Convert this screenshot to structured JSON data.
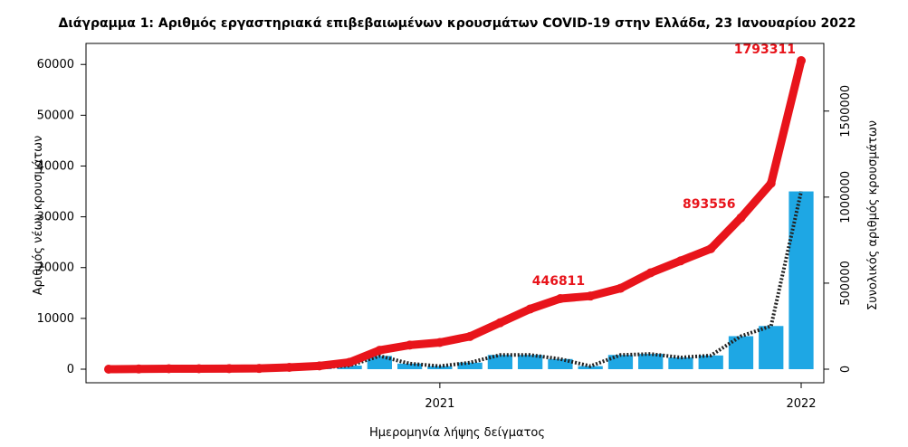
{
  "chart_data": {
    "type": "bar+line",
    "title": "Διάγραμμα 1: Αριθμός εργαστηριακά επιβεβαιωμένων κρουσμάτων COVID-19 στην Ελλάδα, 23 Ιανουαρίου 2022",
    "xlabel": "Ημερομηνία λήψης δείγματος",
    "ylabel_left": "Αριθμός νέων κρουσμάτων",
    "ylabel_right": "Συνολικός αριθμός κρουσμάτων",
    "x_ticks": [
      "2021",
      "2022"
    ],
    "ylim_left": [
      0,
      62000
    ],
    "yticks_left": [
      "0",
      "10000",
      "20000",
      "30000",
      "40000",
      "50000",
      "60000"
    ],
    "ylim_right": [
      0,
      1830000
    ],
    "yticks_right": [
      "0",
      "500000",
      "1000000",
      "1500000"
    ],
    "grid": false,
    "colors": {
      "bars": "#1ea7e4",
      "cumulative": "#e8141b",
      "moving_average": "#222222"
    },
    "daily_new_cases": [
      {
        "month": "2020-02",
        "value": 0
      },
      {
        "month": "2020-03",
        "value": 60
      },
      {
        "month": "2020-04",
        "value": 40
      },
      {
        "month": "2020-05",
        "value": 10
      },
      {
        "month": "2020-06",
        "value": 10
      },
      {
        "month": "2020-07",
        "value": 30
      },
      {
        "month": "2020-08",
        "value": 200
      },
      {
        "month": "2020-09",
        "value": 300
      },
      {
        "month": "2020-10",
        "value": 700
      },
      {
        "month": "2020-11",
        "value": 2600
      },
      {
        "month": "2020-12",
        "value": 1100
      },
      {
        "month": "2021-01",
        "value": 600
      },
      {
        "month": "2021-02",
        "value": 1300
      },
      {
        "month": "2021-03",
        "value": 2800
      },
      {
        "month": "2021-04",
        "value": 2800
      },
      {
        "month": "2021-05",
        "value": 2000
      },
      {
        "month": "2021-06",
        "value": 600
      },
      {
        "month": "2021-07",
        "value": 2800
      },
      {
        "month": "2021-08",
        "value": 3000
      },
      {
        "month": "2021-09",
        "value": 2300
      },
      {
        "month": "2021-10",
        "value": 2700
      },
      {
        "month": "2021-11",
        "value": 6500
      },
      {
        "month": "2021-12",
        "value": 8500
      },
      {
        "month": "2022-01",
        "value": 35000
      }
    ],
    "cumulative_cases": [
      {
        "month": "2020-02",
        "value": 0
      },
      {
        "month": "2020-03",
        "value": 1300
      },
      {
        "month": "2020-04",
        "value": 2600
      },
      {
        "month": "2020-05",
        "value": 2900
      },
      {
        "month": "2020-06",
        "value": 3400
      },
      {
        "month": "2020-07",
        "value": 4300
      },
      {
        "month": "2020-08",
        "value": 10300
      },
      {
        "month": "2020-09",
        "value": 19000
      },
      {
        "month": "2020-10",
        "value": 40000
      },
      {
        "month": "2020-11",
        "value": 110000
      },
      {
        "month": "2020-12",
        "value": 140000
      },
      {
        "month": "2021-01",
        "value": 155000
      },
      {
        "month": "2021-02",
        "value": 190000
      },
      {
        "month": "2021-03",
        "value": 270000
      },
      {
        "month": "2021-04",
        "value": 350000
      },
      {
        "month": "2021-05",
        "value": 410000
      },
      {
        "month": "2021-06",
        "value": 425000
      },
      {
        "month": "2021-07",
        "value": 470000
      },
      {
        "month": "2021-08",
        "value": 560000
      },
      {
        "month": "2021-09",
        "value": 630000
      },
      {
        "month": "2021-10",
        "value": 700000
      },
      {
        "month": "2021-11",
        "value": 880000
      },
      {
        "month": "2021-12",
        "value": 1080000
      },
      {
        "month": "2022-01",
        "value": 1793311
      }
    ],
    "annotations": [
      {
        "text": "446811",
        "month": "2021-06",
        "value": 446811
      },
      {
        "text": "893556",
        "month": "2021-11",
        "value": 893556
      },
      {
        "text": "1793311",
        "month": "2022-01",
        "value": 1793311
      }
    ]
  }
}
